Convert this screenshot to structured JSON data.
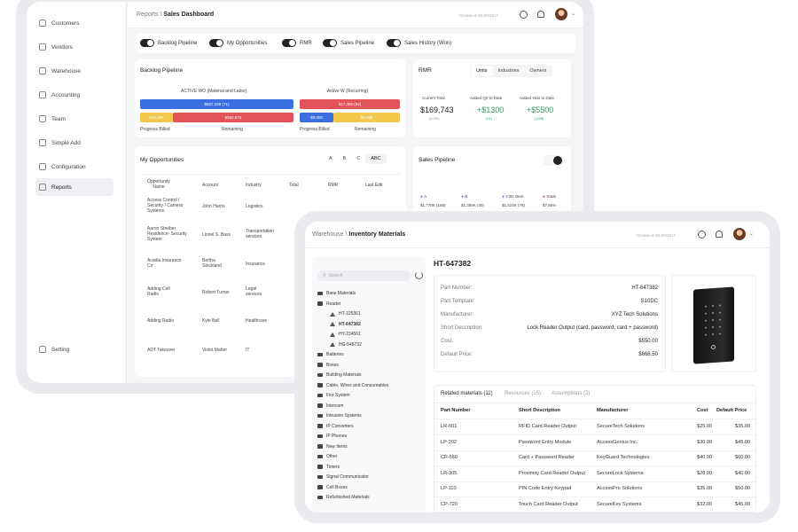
{
  "dashboard": {
    "breadcrumb_root": "Reports",
    "breadcrumb_sep": "\\",
    "breadcrumb_page": "Sales Dashboard",
    "closed_on": "Closed on 04/30/2017",
    "sidebar": {
      "items": [
        {
          "label": "Customers"
        },
        {
          "label": "Vendors"
        },
        {
          "label": "Warehouse"
        },
        {
          "label": "Accounting"
        },
        {
          "label": "Team"
        },
        {
          "label": "Simple Add"
        },
        {
          "label": "Configuration"
        },
        {
          "label": "Reports"
        }
      ],
      "setting_label": "Setting"
    },
    "toggles": [
      {
        "label": "Backlog Pipeline"
      },
      {
        "label": "My Opportunities"
      },
      {
        "label": "RMR"
      },
      {
        "label": "Sales Pipeline"
      },
      {
        "label": "Sales History (Won)"
      }
    ],
    "backlog": {
      "title": "Backlog Pipeline",
      "active_wo": "ACTIVE WO (Material and Labor)",
      "active_w": "Active W (Recurring)",
      "bar1": "$587,229 (71)",
      "bar2": "$17,456 (92)",
      "bar3a": "$16,267",
      "bar3b": "$552,872",
      "bar4a": "$9,000",
      "bar4b": "$8,456",
      "progress_billed": "Progress Billed",
      "remaining": "Remaining"
    },
    "rmr": {
      "title": "RMR",
      "tabs": [
        "Units",
        "Industries",
        "Owners"
      ],
      "current_total_label": "Current Total",
      "current_total": "$169,743",
      "current_total_sub": "(1259)",
      "qtr_label": "Added Qtr to Date",
      "qtr_value": "+$1300",
      "qtr_sub": "(21)",
      "year_label": "Added Year to Date",
      "year_value": "+$5500",
      "year_sub": "(198)"
    },
    "opportunities": {
      "title": "My Opportunities",
      "filters": [
        "A",
        "B",
        "C",
        "ABC"
      ],
      "columns": [
        "Opportunity Name",
        "Account",
        "Industry",
        "Total",
        "RMR",
        "Last Edit"
      ],
      "rows": [
        {
          "name": "Access Control / Security / Camera Systems",
          "account": "John Harris",
          "industry": "Logistics"
        },
        {
          "name": "Aaron Streiber Residence- Security System",
          "account": "Lionel S. Bass",
          "industry": "Transportation services"
        },
        {
          "name": "Acadia Insurance Co",
          "account": "Bertha Strickland",
          "industry": "Insurance"
        },
        {
          "name": "Adding Cell Radio",
          "account": "Robert Turner",
          "industry": "Legal services"
        },
        {
          "name": "Adding Radio",
          "account": "Kyle Bell",
          "industry": "Healthcare"
        },
        {
          "name": "ADT Takeover",
          "account": "Violet Maher",
          "industry": "IT"
        }
      ]
    },
    "sales_pipeline": {
      "title": "Sales Pipeline",
      "legend": [
        {
          "label": "A",
          "value": "$1,778K (188)",
          "color": "#3b82f6"
        },
        {
          "label": "B",
          "value": "$1,389K (40)",
          "color": "#3b82f6"
        },
        {
          "label": "Y2D Won",
          "value": "$1,324K (78)",
          "color": "#3b82f6"
        },
        {
          "label": "Stale",
          "value": "$7,56%",
          "color": "#ef4444"
        }
      ]
    }
  },
  "inventory": {
    "breadcrumb_root": "Warehouse",
    "breadcrumb_sep": "\\",
    "breadcrumb_page": "Inventory Materials",
    "closed_on": "Closed on 04/30/2017",
    "search_placeholder": "Search",
    "tree": [
      {
        "label": "Base Materials",
        "type": "folder",
        "indent": 0
      },
      {
        "label": "Reader",
        "type": "folder",
        "indent": 0
      },
      {
        "label": "HT-125361",
        "type": "item",
        "indent": 1
      },
      {
        "label": "HT-647382",
        "type": "item",
        "indent": 1,
        "bold": true
      },
      {
        "label": "HY-234561",
        "type": "item",
        "indent": 1
      },
      {
        "label": "HG-546732",
        "type": "item",
        "indent": 1
      },
      {
        "label": "Batteries",
        "type": "folder",
        "indent": 0
      },
      {
        "label": "Boxes",
        "type": "folder",
        "indent": 0
      },
      {
        "label": "Building Materials",
        "type": "folder",
        "indent": 0
      },
      {
        "label": "Cable, Wires and Consumables",
        "type": "folder",
        "indent": 0
      },
      {
        "label": "Fire System",
        "type": "folder",
        "indent": 0
      },
      {
        "label": "Intercom",
        "type": "folder",
        "indent": 0
      },
      {
        "label": "Intrusion Systems",
        "type": "folder",
        "indent": 0
      },
      {
        "label": "IP Converters",
        "type": "folder",
        "indent": 0
      },
      {
        "label": "IP Phones",
        "type": "folder",
        "indent": 0
      },
      {
        "label": "New Items",
        "type": "folder",
        "indent": 0
      },
      {
        "label": "Other",
        "type": "folder",
        "indent": 0
      },
      {
        "label": "Timers",
        "type": "folder",
        "indent": 0
      },
      {
        "label": "Signal Communicator",
        "type": "folder",
        "indent": 0
      },
      {
        "label": "Cell Boxes",
        "type": "folder",
        "indent": 0
      },
      {
        "label": "Refurbished Materials",
        "type": "folder",
        "indent": 0
      }
    ],
    "detail_title": "HT-647382",
    "details": [
      {
        "label": "Part Number:",
        "value": "HT-647382"
      },
      {
        "label": "Part Template:",
        "value": "S10DC"
      },
      {
        "label": "Manufacturer:",
        "value": "XYZ Tech Solutions"
      },
      {
        "label": "Short Description:",
        "value": "Lock Reader Output (card, password, card + password)"
      },
      {
        "label": "Cost:",
        "value": "$550.00"
      },
      {
        "label": "Default Price:",
        "value": "$668.50"
      }
    ],
    "tabs": [
      "Related materials (11)",
      "Resources (15)",
      "Assumptions (2)"
    ],
    "table_columns": [
      "Part Number",
      "Short Description",
      "Manufacturer",
      "Cost",
      "Default Price"
    ],
    "table_rows": [
      [
        "LR-001",
        "RFID Card Reader Output",
        "SecureTech Solutions",
        "$25.00",
        "$35.00"
      ],
      [
        "LP-202",
        "Password Entry Module",
        "AccessGenius Inc.",
        "$30.00",
        "$45.00"
      ],
      [
        "CP-550",
        "Card + Password Reader",
        "KeyGuard Technologies",
        "$40.00",
        "$60.00"
      ],
      [
        "LR-305",
        "Proximity Card Reader Output",
        "SecureLock Systems",
        "$28.00",
        "$40.00"
      ],
      [
        "LP-110",
        "PIN Code Entry Keypad",
        "AccessPro Solutions",
        "$35.00",
        "$50.00"
      ],
      [
        "CP-720",
        "Touch Card Reader Output",
        "SecureKey Systems",
        "$32.00",
        "$45.00"
      ]
    ]
  },
  "colors": {
    "blue": "#3b6fe0",
    "red": "#e2545a",
    "yellow": "#f2c94c",
    "green": "#2e9e5b"
  }
}
